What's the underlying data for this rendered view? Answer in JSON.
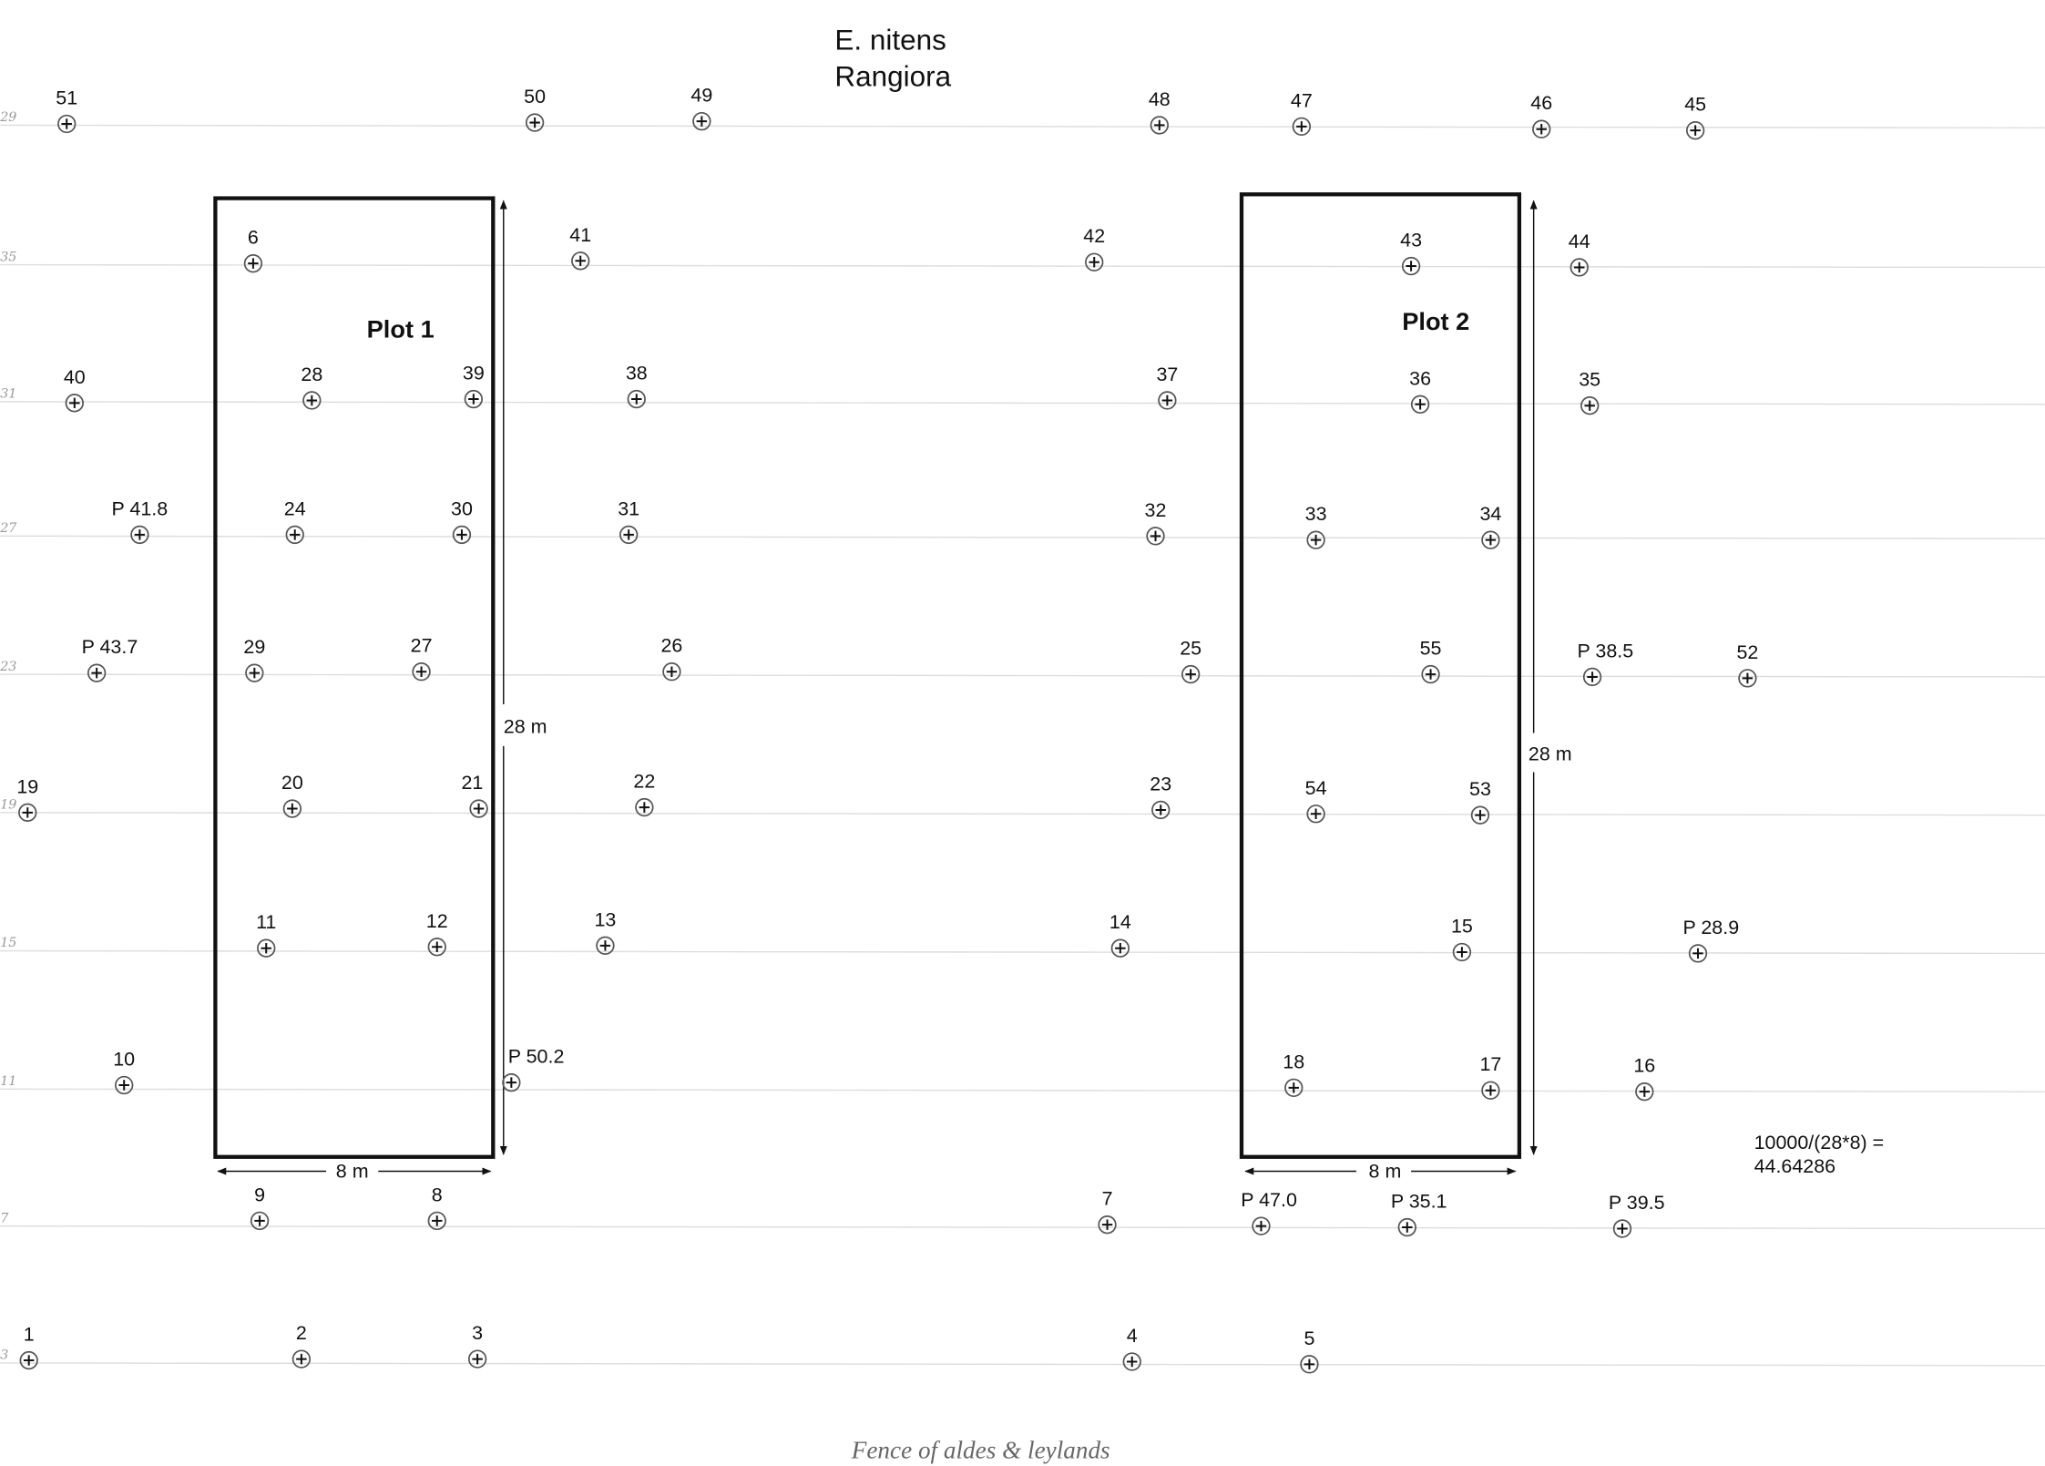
{
  "title": {
    "species": "E. nitens",
    "site": "Rangiora"
  },
  "row_labels": [
    "29",
    "35",
    "31",
    "27",
    "23",
    "19",
    "15",
    "11",
    "7",
    "3"
  ],
  "trees": [
    "51",
    "50",
    "49",
    "48",
    "47",
    "46",
    "45",
    "6",
    "41",
    "42",
    "43",
    "44",
    "40",
    "28",
    "39",
    "38",
    "37",
    "36",
    "35",
    "P 41.8",
    "24",
    "30",
    "31",
    "32",
    "33",
    "34",
    "P 43.7",
    "29",
    "27",
    "26",
    "25",
    "55",
    "P 38.5",
    "52",
    "19",
    "20",
    "21",
    "22",
    "23",
    "54",
    "53",
    "11",
    "12",
    "13",
    "14",
    "15",
    "P 28.9",
    "10",
    "P 50.2",
    "18",
    "17",
    "16",
    "9",
    "8",
    "7",
    "P 47.0",
    "P 35.1",
    "P 39.5",
    "1",
    "2",
    "3",
    "4",
    "5"
  ],
  "plots": [
    {
      "title": "Plot 1",
      "length": "28 m",
      "width": "8 m"
    },
    {
      "title": "Plot 2",
      "length": "28 m",
      "width": "8 m"
    }
  ],
  "formula": {
    "expression": "10000/(28*8) =",
    "result": "44.64286"
  },
  "footer": "Fence of aldes & leylands"
}
